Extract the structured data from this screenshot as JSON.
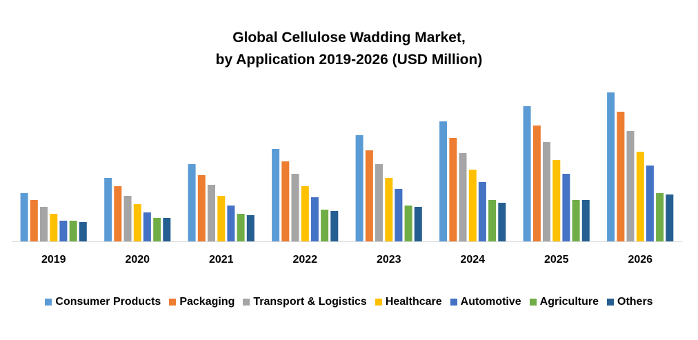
{
  "chart_data": {
    "type": "bar",
    "title": "Global Cellulose Wadding Market,",
    "subtitle": "by Application  2019-2026 (USD Million)",
    "xlabel": "",
    "ylabel": "",
    "grid": false,
    "legend_position": "bottom",
    "ylim": [
      0,
      110
    ],
    "categories": [
      "2019",
      "2020",
      "2021",
      "2022",
      "2023",
      "2024",
      "2025",
      "2026"
    ],
    "series": [
      {
        "name": "Consumer Products",
        "color": "#5B9BD5",
        "values": [
          35,
          46,
          56,
          67,
          77,
          87,
          98,
          108
        ]
      },
      {
        "name": "Packaging",
        "color": "#ED7D31",
        "values": [
          30,
          40,
          48,
          58,
          66,
          75,
          84,
          94
        ]
      },
      {
        "name": "Transport & Logistics",
        "color": "#A5A5A5",
        "values": [
          25,
          33,
          41,
          49,
          56,
          64,
          72,
          80
        ]
      },
      {
        "name": "Healthcare",
        "color": "#FFC000",
        "values": [
          20,
          27,
          33,
          40,
          46,
          52,
          59,
          65
        ]
      },
      {
        "name": "Automotive",
        "color": "#4472C4",
        "values": [
          15,
          21,
          26,
          32,
          38,
          43,
          49,
          55
        ]
      },
      {
        "name": "Agriculture",
        "color": "#70AD47",
        "values": [
          15,
          17,
          20,
          23,
          26,
          30,
          30,
          35
        ]
      },
      {
        "name": "Others",
        "color": "#255E91",
        "values": [
          14,
          17,
          19,
          22,
          25,
          28,
          30,
          34
        ]
      }
    ]
  }
}
